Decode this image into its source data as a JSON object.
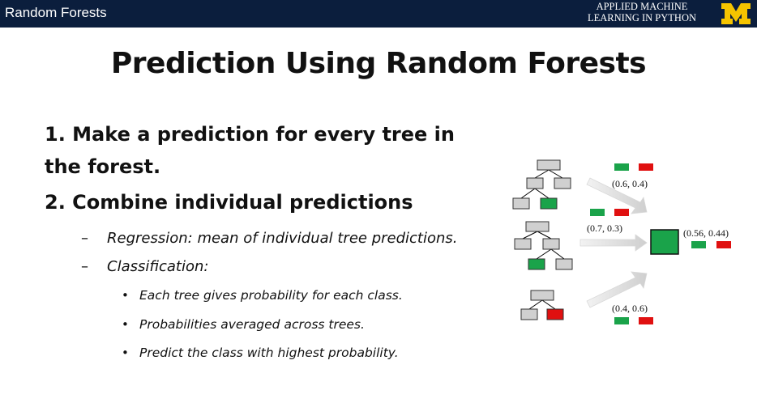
{
  "header": {
    "title": "Random Forests",
    "course_line1": "APPLIED MACHINE",
    "course_line2": "LEARNING IN PYTHON",
    "logo_letter": "M",
    "bar_color": "#0b1e3d",
    "logo_color": "#f5c400"
  },
  "slide": {
    "title": "Prediction Using Random Forests",
    "point1_line1": "1. Make a prediction for every tree in",
    "point1_line2": "the forest.",
    "point2": "2. Combine individual predictions",
    "dash": "–",
    "bullet": "•",
    "regression": "Regression: mean of individual tree predictions.",
    "classification": "Classification:",
    "sub1": "Each tree gives probability for each class.",
    "sub2": "Probabilities averaged across trees.",
    "sub3": "Predict the class with highest probability."
  },
  "diagram": {
    "tree1_probs": "(0.6, 0.4)",
    "tree2_probs": "(0.7, 0.3)",
    "tree3_probs": "(0.4, 0.6)",
    "result_probs": "(0.56, 0.44)",
    "class_colors": {
      "class1": "#1aa34a",
      "class2": "#e01010",
      "node": "#d0d0d0"
    }
  }
}
